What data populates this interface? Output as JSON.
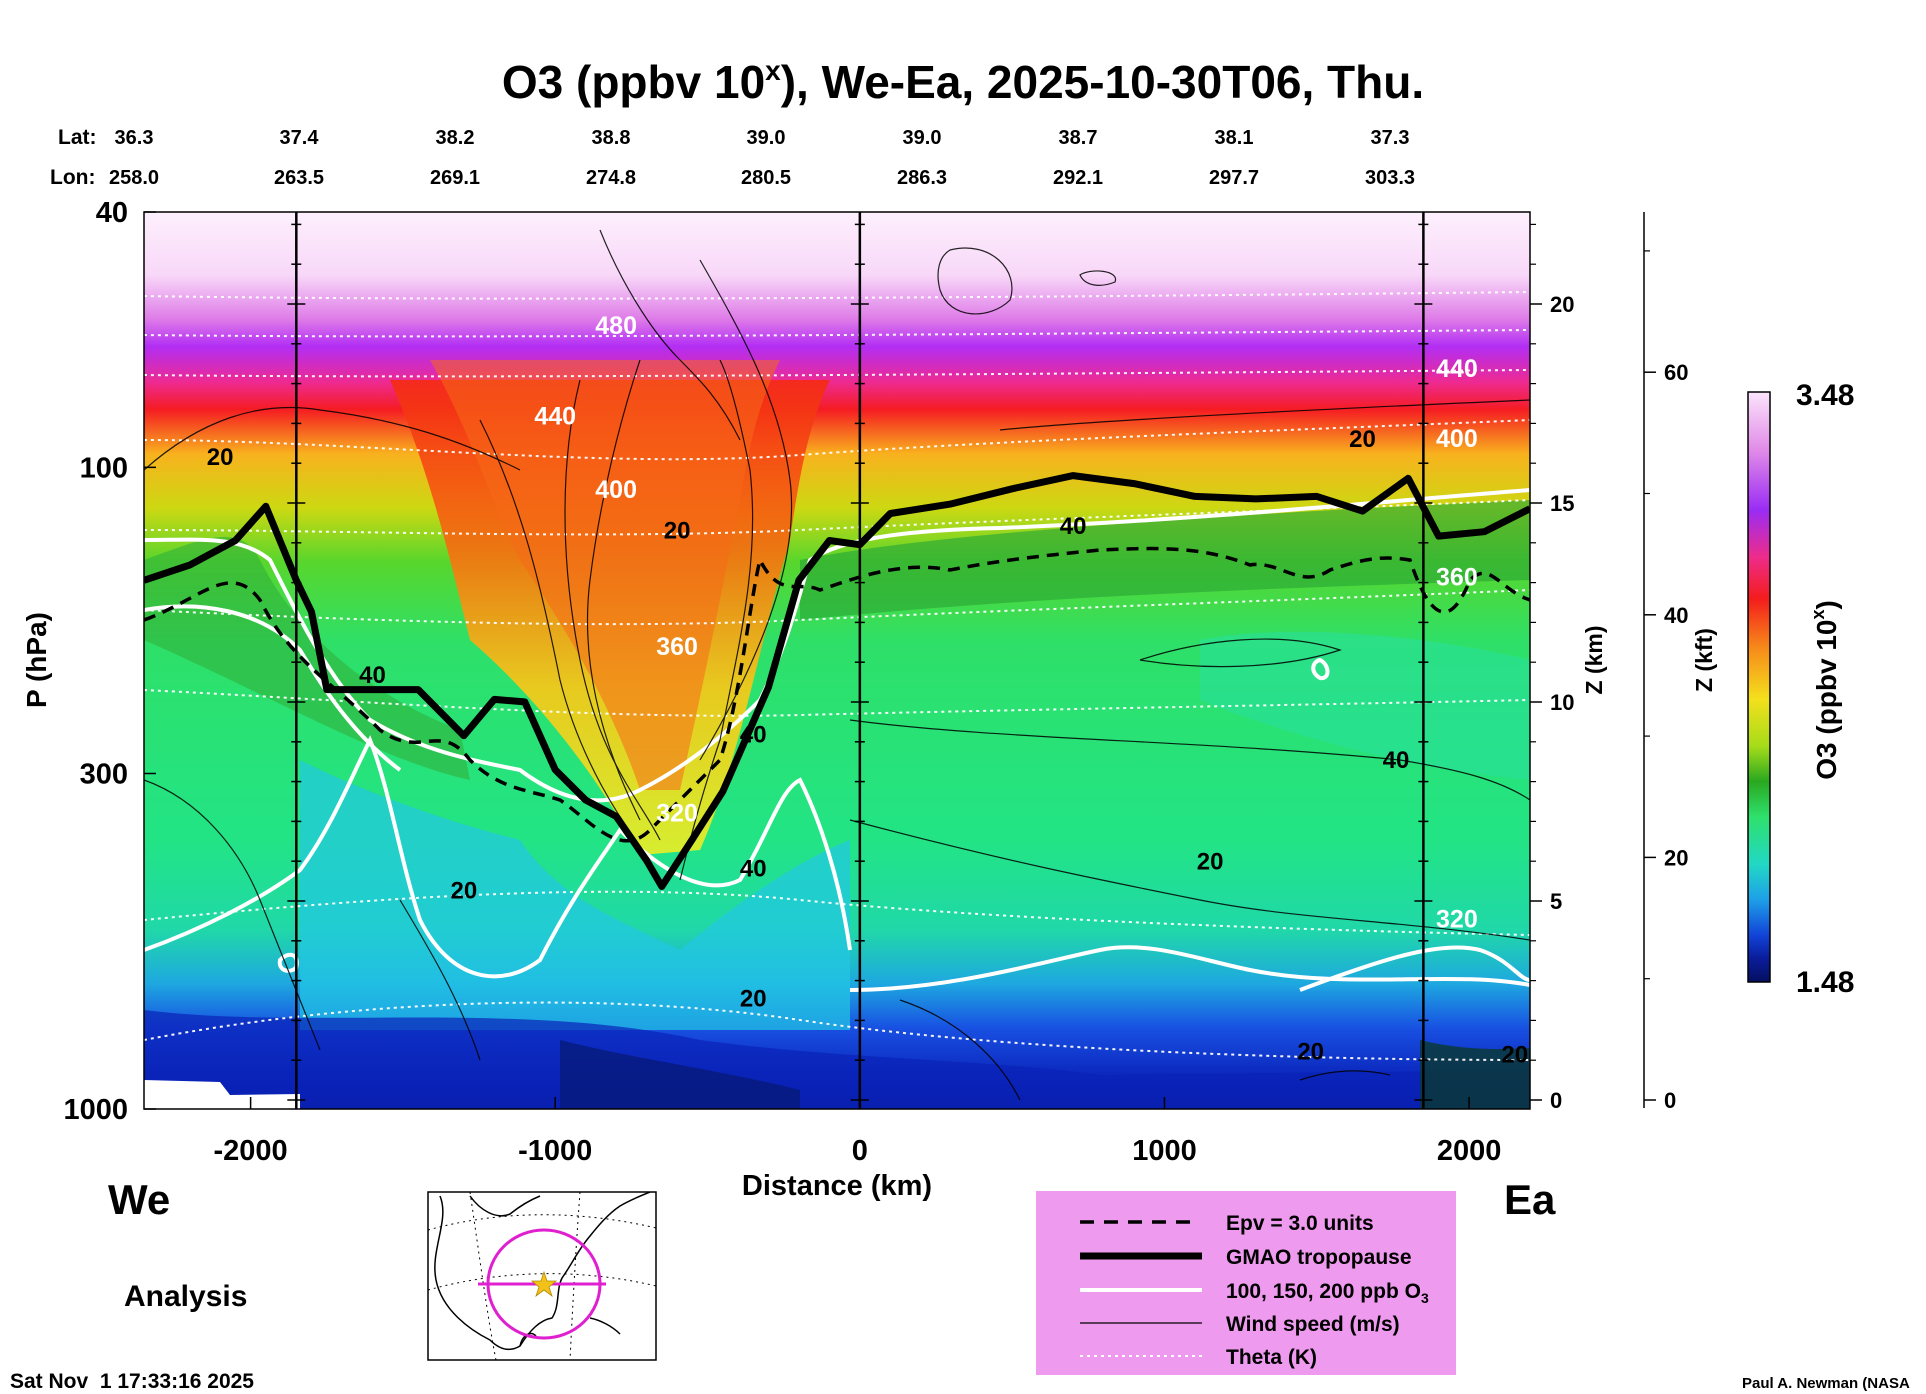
{
  "chart_data": {
    "type": "heatmap",
    "title": "O3 (ppbv 10",
    "title_superscript": "x",
    "title_suffix": "), We-Ea, 2025-10-30T06, Thu.",
    "xlabel": "Distance (km)",
    "ylabel": "P (hPa)",
    "y2label": "Z (km)",
    "y3label": "Z (kft)",
    "colorbar_label": "O3 (ppbv 10",
    "colorbar_superscript": "x",
    "colorbar_label_suffix": ")",
    "colorbar_max": "3.48",
    "colorbar_min": "1.48",
    "colorbar_range": [
      1.48,
      3.48
    ],
    "x_ticks": [
      -2000,
      -1000,
      0,
      1000,
      2000
    ],
    "xlim": [
      -2350,
      2200
    ],
    "ylim_hpa": [
      1000,
      40
    ],
    "y_log_scale": true,
    "y_ticks": [
      40,
      100,
      300,
      1000
    ],
    "z_km_ticks": [
      0,
      5,
      10,
      15,
      20
    ],
    "z_kft_ticks": [
      0,
      20,
      40,
      60
    ],
    "lat_label": "Lat:",
    "lon_label": "Lon:",
    "lat_values": [
      "36.3",
      "37.4",
      "38.2",
      "38.8",
      "39.0",
      "39.0",
      "38.7",
      "38.1",
      "37.3"
    ],
    "lon_values": [
      "258.0",
      "263.5",
      "269.1",
      "274.8",
      "280.5",
      "286.3",
      "292.1",
      "297.7",
      "303.3"
    ],
    "left_side": "We",
    "right_side": "Ea",
    "analysis_label": "Analysis",
    "timestamp": "Sat Nov  1 17:33:16 2025",
    "credit": "Paul A. Newman (NASA",
    "vertical_markers_km": [
      -1850,
      0,
      1850
    ],
    "tropopause_hpa": [
      {
        "x": -2350,
        "p": 150
      },
      {
        "x": -2200,
        "p": 142
      },
      {
        "x": -2050,
        "p": 130
      },
      {
        "x": -1950,
        "p": 115
      },
      {
        "x": -1850,
        "p": 150
      },
      {
        "x": -1800,
        "p": 168
      },
      {
        "x": -1750,
        "p": 222
      },
      {
        "x": -1600,
        "p": 222
      },
      {
        "x": -1450,
        "p": 222
      },
      {
        "x": -1300,
        "p": 262
      },
      {
        "x": -1200,
        "p": 230
      },
      {
        "x": -1100,
        "p": 232
      },
      {
        "x": -1000,
        "p": 296
      },
      {
        "x": -900,
        "p": 330
      },
      {
        "x": -800,
        "p": 350
      },
      {
        "x": -700,
        "p": 410
      },
      {
        "x": -650,
        "p": 450
      },
      {
        "x": -550,
        "p": 380
      },
      {
        "x": -450,
        "p": 320
      },
      {
        "x": -300,
        "p": 220
      },
      {
        "x": -200,
        "p": 150
      },
      {
        "x": -100,
        "p": 130
      },
      {
        "x": 0,
        "p": 132
      },
      {
        "x": 100,
        "p": 118
      },
      {
        "x": 300,
        "p": 114
      },
      {
        "x": 500,
        "p": 108
      },
      {
        "x": 700,
        "p": 103
      },
      {
        "x": 900,
        "p": 106
      },
      {
        "x": 1100,
        "p": 111
      },
      {
        "x": 1300,
        "p": 112
      },
      {
        "x": 1500,
        "p": 111
      },
      {
        "x": 1650,
        "p": 117
      },
      {
        "x": 1800,
        "p": 104
      },
      {
        "x": 1900,
        "p": 128
      },
      {
        "x": 2050,
        "p": 126
      },
      {
        "x": 2200,
        "p": 116
      }
    ],
    "theta_labels": [
      {
        "x": -800,
        "p": 60,
        "text": "480"
      },
      {
        "x": -1000,
        "p": 83,
        "text": "440"
      },
      {
        "x": -800,
        "p": 108,
        "text": "400"
      },
      {
        "x": -600,
        "p": 190,
        "text": "360"
      },
      {
        "x": -600,
        "p": 345,
        "text": "320"
      },
      {
        "x": 1960,
        "p": 70,
        "text": "440"
      },
      {
        "x": 1960,
        "p": 90,
        "text": "400"
      },
      {
        "x": 1960,
        "p": 148,
        "text": "360"
      },
      {
        "x": 1960,
        "p": 505,
        "text": "320"
      }
    ],
    "wind_labels": [
      {
        "x": -2100,
        "p": 96,
        "text": "20"
      },
      {
        "x": -600,
        "p": 125,
        "text": "20"
      },
      {
        "x": 1650,
        "p": 90,
        "text": "20"
      },
      {
        "x": 700,
        "p": 123,
        "text": "40"
      },
      {
        "x": -1600,
        "p": 210,
        "text": "40"
      },
      {
        "x": -350,
        "p": 260,
        "text": "40"
      },
      {
        "x": 1760,
        "p": 285,
        "text": "40"
      },
      {
        "x": -1300,
        "p": 455,
        "text": "20"
      },
      {
        "x": 1150,
        "p": 410,
        "text": "20"
      },
      {
        "x": -350,
        "p": 420,
        "text": "40"
      },
      {
        "x": -350,
        "p": 670,
        "text": "20"
      },
      {
        "x": 1480,
        "p": 810,
        "text": "20"
      },
      {
        "x": 2150,
        "p": 820,
        "text": "20"
      }
    ],
    "legend": [
      {
        "style": "dashed",
        "label": "Epv = 3.0 units"
      },
      {
        "style": "thick",
        "label": "GMAO tropopause"
      },
      {
        "style": "white",
        "label": "100, 150, 200 ppb O"
      },
      {
        "style": "thin",
        "label": "Wind speed (m/s)"
      },
      {
        "style": "dotted",
        "label": "Theta (K)"
      }
    ],
    "legend_subscript": "3",
    "colors": {
      "legend_bg": "#ee9aee",
      "top": "#fce8fc",
      "stratosphere_red": "#f01818",
      "troposphere_green": "#22e070",
      "surface_blue": "#0a2ad0",
      "map_circle": "#e020d0",
      "map_star": "#f2c21a"
    }
  }
}
